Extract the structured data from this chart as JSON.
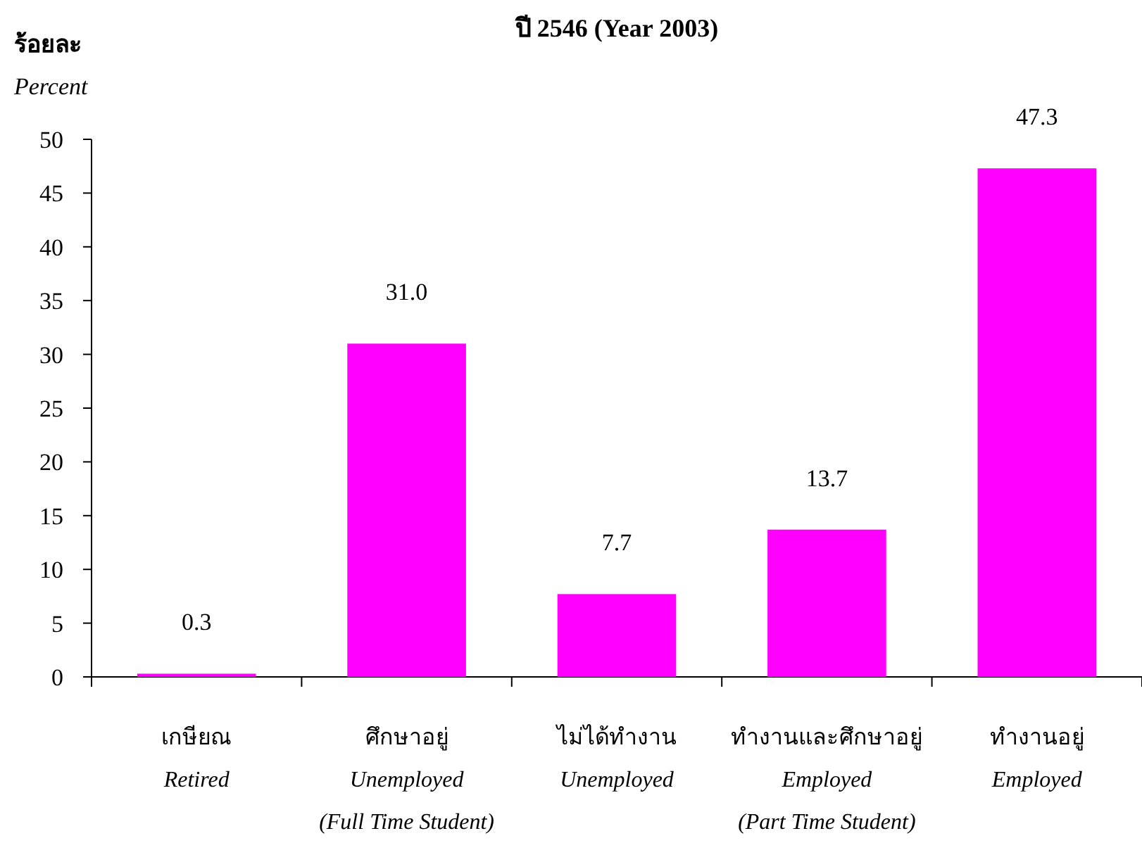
{
  "chart_data": {
    "type": "bar",
    "title": "ปี 2546 (Year 2003)",
    "ylabel": "ร้อยละ\nPercent",
    "categories": [
      "เกษียณ\nRetired",
      "ศึกษาอยู่\nUnemployed\n(Full Time Student)",
      "ไม่ได้ทำงาน\nUnemployed",
      "ทำงานและศึกษาอยู่\nEmployed\n(Part Time Student)",
      "ทำงานอยู่\nEmployed"
    ],
    "values": [
      0.3,
      31.0,
      7.7,
      13.7,
      47.3
    ],
    "value_labels": [
      "0.3",
      "31.0",
      "7.7",
      "13.7",
      "47.3"
    ],
    "color": "#ff00ff",
    "ylim": [
      0,
      50
    ],
    "yticks": [
      0,
      5,
      10,
      15,
      20,
      25,
      30,
      35,
      40,
      45,
      50
    ],
    "grid": false
  }
}
